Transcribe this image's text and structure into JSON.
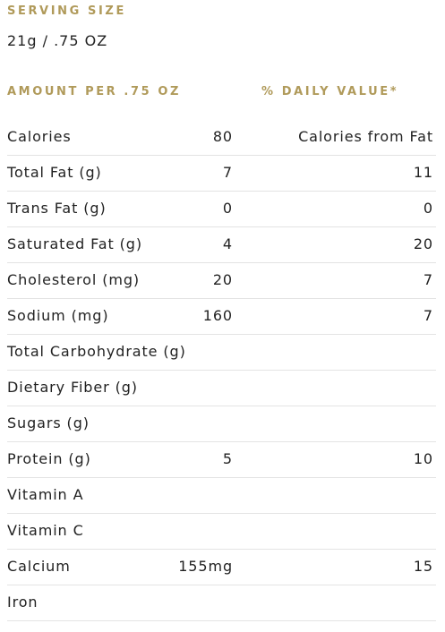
{
  "serving": {
    "label": "SERVING SIZE",
    "value": "21g / .75 OZ"
  },
  "table": {
    "headers": {
      "amount": "AMOUNT PER .75 OZ",
      "daily_value": "% DAILY VALUE*"
    },
    "rows": [
      {
        "name": "Calories",
        "amount": "80",
        "dv": "Calories from Fat"
      },
      {
        "name": "Total Fat (g)",
        "amount": "7",
        "dv": "11"
      },
      {
        "name": "Trans Fat (g)",
        "amount": "0",
        "dv": "0"
      },
      {
        "name": "Saturated Fat (g)",
        "amount": "4",
        "dv": "20"
      },
      {
        "name": "Cholesterol (mg)",
        "amount": "20",
        "dv": "7"
      },
      {
        "name": "Sodium (mg)",
        "amount": "160",
        "dv": "7"
      },
      {
        "name": "Total Carbohydrate (g)",
        "amount": "",
        "dv": ""
      },
      {
        "name": "Dietary Fiber (g)",
        "amount": "",
        "dv": ""
      },
      {
        "name": "Sugars (g)",
        "amount": "",
        "dv": ""
      },
      {
        "name": "Protein (g)",
        "amount": "5",
        "dv": "10"
      },
      {
        "name": "Vitamin A",
        "amount": "",
        "dv": ""
      },
      {
        "name": "Vitamin C",
        "amount": "",
        "dv": ""
      },
      {
        "name": "Calcium",
        "amount": "155mg",
        "dv": "15"
      },
      {
        "name": "Iron",
        "amount": "",
        "dv": ""
      }
    ]
  },
  "colors": {
    "heading": "#b09a5a",
    "text": "#222222",
    "divider": "#e3e3e3"
  }
}
